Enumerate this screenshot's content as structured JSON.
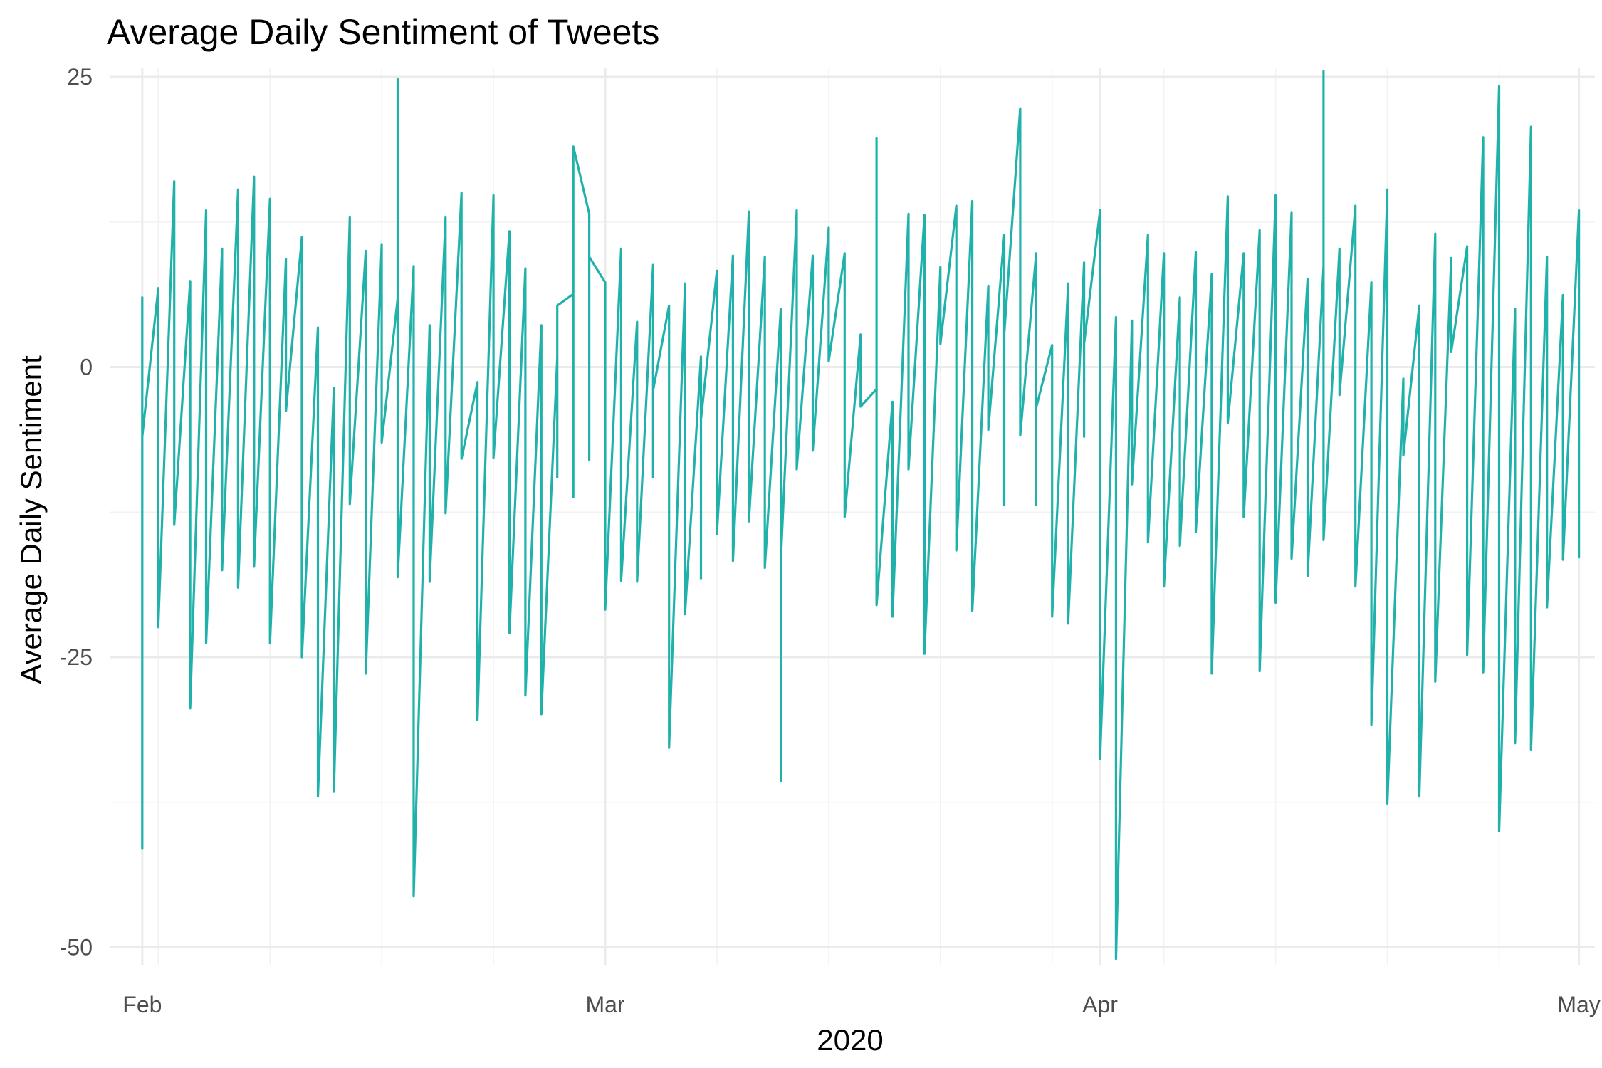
{
  "chart_data": {
    "type": "line",
    "title": "Average Daily Sentiment of Tweets",
    "xlabel": "2020",
    "ylabel": "Average Daily Sentiment",
    "ylim": [
      -51.5,
      25.8
    ],
    "xlim": [
      "2020-01-30",
      "2020-05-02"
    ],
    "y_ticks": [
      25,
      0,
      -25,
      -50
    ],
    "y_tick_labels": [
      "25",
      "0",
      "-25",
      "-50"
    ],
    "x_ticks": [
      "2020-02-01",
      "2020-03-01",
      "2020-04-01",
      "2020-05-01"
    ],
    "x_tick_labels": [
      "Feb",
      "Mar",
      "Apr",
      "May"
    ],
    "grid": true,
    "legend": "none",
    "line_color": "#20B2AA",
    "series": [
      {
        "points": [
          [
            "2020-02-01",
            6.0
          ],
          [
            "2020-02-01",
            -41.5
          ],
          [
            "2020-02-01",
            -6.0
          ],
          [
            "2020-02-02",
            6.8
          ],
          [
            "2020-02-02",
            -22.4
          ],
          [
            "2020-02-03",
            16.0
          ],
          [
            "2020-02-03",
            -13.6
          ],
          [
            "2020-02-04",
            7.4
          ],
          [
            "2020-02-04",
            -29.4
          ],
          [
            "2020-02-05",
            13.5
          ],
          [
            "2020-02-05",
            -23.8
          ],
          [
            "2020-02-06",
            10.2
          ],
          [
            "2020-02-06",
            -17.5
          ],
          [
            "2020-02-07",
            15.3
          ],
          [
            "2020-02-07",
            -19.0
          ],
          [
            "2020-02-08",
            16.4
          ],
          [
            "2020-02-08",
            -17.2
          ],
          [
            "2020-02-09",
            14.5
          ],
          [
            "2020-02-09",
            -23.8
          ],
          [
            "2020-02-10",
            9.3
          ],
          [
            "2020-02-10",
            -3.8
          ],
          [
            "2020-02-11",
            11.2
          ],
          [
            "2020-02-11",
            -25.0
          ],
          [
            "2020-02-12",
            3.4
          ],
          [
            "2020-02-12",
            -37.0
          ],
          [
            "2020-02-13",
            -1.8
          ],
          [
            "2020-02-13",
            -36.6
          ],
          [
            "2020-02-14",
            12.9
          ],
          [
            "2020-02-14",
            -11.8
          ],
          [
            "2020-02-15",
            10.0
          ],
          [
            "2020-02-15",
            -26.4
          ],
          [
            "2020-02-16",
            10.6
          ],
          [
            "2020-02-16",
            -6.5
          ],
          [
            "2020-02-17",
            5.9
          ],
          [
            "2020-02-17",
            24.8
          ],
          [
            "2020-02-17",
            -18.1
          ],
          [
            "2020-02-18",
            8.7
          ],
          [
            "2020-02-18",
            -45.6
          ],
          [
            "2020-02-19",
            3.6
          ],
          [
            "2020-02-19",
            -18.5
          ],
          [
            "2020-02-20",
            12.9
          ],
          [
            "2020-02-20",
            -12.6
          ],
          [
            "2020-02-21",
            15.0
          ],
          [
            "2020-02-21",
            -7.9
          ],
          [
            "2020-02-22",
            -1.3
          ],
          [
            "2020-02-22",
            -30.4
          ],
          [
            "2020-02-23",
            14.8
          ],
          [
            "2020-02-23",
            -7.8
          ],
          [
            "2020-02-24",
            11.7
          ],
          [
            "2020-02-24",
            -22.9
          ],
          [
            "2020-02-25",
            8.5
          ],
          [
            "2020-02-25",
            -28.3
          ],
          [
            "2020-02-26",
            3.6
          ],
          [
            "2020-02-26",
            -29.9
          ],
          [
            "2020-02-27",
            0.8
          ],
          [
            "2020-02-27",
            -9.5
          ],
          [
            "2020-02-27",
            5.3
          ],
          [
            "2020-02-28",
            6.3
          ],
          [
            "2020-02-28",
            19.0
          ],
          [
            "2020-02-28",
            -11.2
          ],
          [
            "2020-02-28",
            19.0
          ],
          [
            "2020-02-29",
            13.2
          ],
          [
            "2020-02-29",
            9.5
          ],
          [
            "2020-02-29",
            -8.0
          ],
          [
            "2020-02-29",
            9.5
          ],
          [
            "2020-03-01",
            7.3
          ],
          [
            "2020-03-01",
            -20.9
          ],
          [
            "2020-03-02",
            10.2
          ],
          [
            "2020-03-02",
            -18.4
          ],
          [
            "2020-03-03",
            3.9
          ],
          [
            "2020-03-03",
            -18.5
          ],
          [
            "2020-03-04",
            8.8
          ],
          [
            "2020-03-04",
            -9.5
          ],
          [
            "2020-03-04",
            -2.0
          ],
          [
            "2020-03-05",
            5.3
          ],
          [
            "2020-03-05",
            -32.8
          ],
          [
            "2020-03-06",
            7.2
          ],
          [
            "2020-03-06",
            -21.3
          ],
          [
            "2020-03-07",
            0.9
          ],
          [
            "2020-03-07",
            -18.2
          ],
          [
            "2020-03-07",
            -4.5
          ],
          [
            "2020-03-08",
            8.3
          ],
          [
            "2020-03-08",
            -14.4
          ],
          [
            "2020-03-09",
            9.6
          ],
          [
            "2020-03-09",
            -16.7
          ],
          [
            "2020-03-10",
            13.4
          ],
          [
            "2020-03-10",
            -13.3
          ],
          [
            "2020-03-11",
            9.5
          ],
          [
            "2020-03-11",
            -17.3
          ],
          [
            "2020-03-12",
            5.0
          ],
          [
            "2020-03-12",
            -35.7
          ],
          [
            "2020-03-12",
            -16.7
          ],
          [
            "2020-03-13",
            13.5
          ],
          [
            "2020-03-13",
            -8.8
          ],
          [
            "2020-03-14",
            9.6
          ],
          [
            "2020-03-14",
            -7.2
          ],
          [
            "2020-03-15",
            12.0
          ],
          [
            "2020-03-15",
            0.5
          ],
          [
            "2020-03-16",
            9.8
          ],
          [
            "2020-03-16",
            -12.9
          ],
          [
            "2020-03-17",
            2.8
          ],
          [
            "2020-03-17",
            -3.4
          ],
          [
            "2020-03-18",
            -1.9
          ],
          [
            "2020-03-18",
            19.7
          ],
          [
            "2020-03-18",
            -20.5
          ],
          [
            "2020-03-19",
            -3.0
          ],
          [
            "2020-03-19",
            -21.5
          ],
          [
            "2020-03-20",
            13.2
          ],
          [
            "2020-03-20",
            -8.8
          ],
          [
            "2020-03-21",
            13.1
          ],
          [
            "2020-03-21",
            -24.7
          ],
          [
            "2020-03-22",
            8.6
          ],
          [
            "2020-03-22",
            2.0
          ],
          [
            "2020-03-23",
            13.9
          ],
          [
            "2020-03-23",
            -15.8
          ],
          [
            "2020-03-24",
            14.3
          ],
          [
            "2020-03-24",
            -21.0
          ],
          [
            "2020-03-25",
            7.0
          ],
          [
            "2020-03-25",
            -5.4
          ],
          [
            "2020-03-26",
            11.4
          ],
          [
            "2020-03-26",
            -11.9
          ],
          [
            "2020-03-26",
            2.9
          ],
          [
            "2020-03-27",
            22.3
          ],
          [
            "2020-03-27",
            -5.9
          ],
          [
            "2020-03-28",
            9.8
          ],
          [
            "2020-03-28",
            -11.9
          ],
          [
            "2020-03-28",
            -3.5
          ],
          [
            "2020-03-29",
            1.9
          ],
          [
            "2020-03-29",
            -21.5
          ],
          [
            "2020-03-30",
            7.2
          ],
          [
            "2020-03-30",
            -22.1
          ],
          [
            "2020-03-31",
            9.0
          ],
          [
            "2020-03-31",
            -6.0
          ],
          [
            "2020-03-31",
            2.0
          ],
          [
            "2020-04-01",
            13.5
          ],
          [
            "2020-04-01",
            -33.8
          ],
          [
            "2020-04-02",
            4.3
          ],
          [
            "2020-04-02",
            -51.0
          ],
          [
            "2020-04-03",
            4.0
          ],
          [
            "2020-04-03",
            -10.1
          ],
          [
            "2020-04-04",
            11.4
          ],
          [
            "2020-04-04",
            -15.1
          ],
          [
            "2020-04-05",
            9.8
          ],
          [
            "2020-04-05",
            -18.9
          ],
          [
            "2020-04-06",
            6.0
          ],
          [
            "2020-04-06",
            -15.4
          ],
          [
            "2020-04-07",
            9.9
          ],
          [
            "2020-04-07",
            -14.2
          ],
          [
            "2020-04-08",
            8.0
          ],
          [
            "2020-04-08",
            -26.4
          ],
          [
            "2020-04-09",
            14.7
          ],
          [
            "2020-04-09",
            -4.8
          ],
          [
            "2020-04-10",
            9.8
          ],
          [
            "2020-04-10",
            -12.9
          ],
          [
            "2020-04-11",
            11.8
          ],
          [
            "2020-04-11",
            -26.2
          ],
          [
            "2020-04-12",
            14.8
          ],
          [
            "2020-04-12",
            -20.3
          ],
          [
            "2020-04-13",
            13.3
          ],
          [
            "2020-04-13",
            -16.5
          ],
          [
            "2020-04-14",
            7.6
          ],
          [
            "2020-04-14",
            -18.0
          ],
          [
            "2020-04-15",
            8.7
          ],
          [
            "2020-04-15",
            25.5
          ],
          [
            "2020-04-15",
            -14.9
          ],
          [
            "2020-04-16",
            10.2
          ],
          [
            "2020-04-16",
            -2.4
          ],
          [
            "2020-04-17",
            13.9
          ],
          [
            "2020-04-17",
            -18.9
          ],
          [
            "2020-04-18",
            7.3
          ],
          [
            "2020-04-18",
            -30.8
          ],
          [
            "2020-04-19",
            15.3
          ],
          [
            "2020-04-19",
            -37.6
          ],
          [
            "2020-04-20",
            -1.0
          ],
          [
            "2020-04-20",
            -7.6
          ],
          [
            "2020-04-21",
            5.3
          ],
          [
            "2020-04-21",
            -37.0
          ],
          [
            "2020-04-22",
            11.5
          ],
          [
            "2020-04-22",
            -27.1
          ],
          [
            "2020-04-23",
            9.4
          ],
          [
            "2020-04-23",
            1.3
          ],
          [
            "2020-04-24",
            10.4
          ],
          [
            "2020-04-24",
            -24.8
          ],
          [
            "2020-04-25",
            19.8
          ],
          [
            "2020-04-25",
            -26.3
          ],
          [
            "2020-04-26",
            24.2
          ],
          [
            "2020-04-26",
            -40.0
          ],
          [
            "2020-04-27",
            5.0
          ],
          [
            "2020-04-27",
            -32.4
          ],
          [
            "2020-04-28",
            20.7
          ],
          [
            "2020-04-28",
            -33.0
          ],
          [
            "2020-04-29",
            9.5
          ],
          [
            "2020-04-29",
            -20.7
          ],
          [
            "2020-04-30",
            6.2
          ],
          [
            "2020-04-30",
            -16.6
          ],
          [
            "2020-05-01",
            13.5
          ],
          [
            "2020-05-01",
            -16.4
          ]
        ]
      }
    ]
  }
}
